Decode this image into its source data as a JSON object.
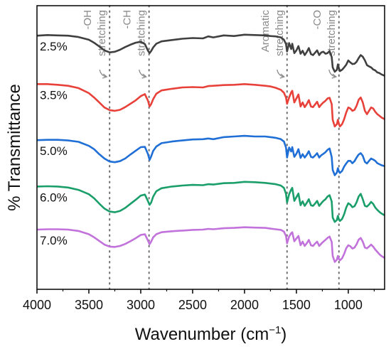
{
  "chart_data": {
    "type": "line",
    "title": "",
    "xlabel": "Wavenumber (cm",
    "xlabel_superscript": "−1",
    "xlabel_close": ")",
    "ylabel": "% Transmittance",
    "xlim": [
      4000,
      650
    ],
    "x_reversed": true,
    "y_ticks_shown": false,
    "grid": false,
    "x_ticks": [
      4000,
      3500,
      3000,
      2500,
      2000,
      1500,
      1000
    ],
    "x_tick_labels": [
      "4000",
      "3500",
      "3000",
      "2500",
      "2000",
      "1500",
      "1000"
    ],
    "reference_lines": [
      3300,
      2920,
      1590,
      1090
    ],
    "annotations": [
      {
        "lines": [
          "-OH",
          "stretching"
        ],
        "x": 3300
      },
      {
        "lines": [
          "-CH",
          "stretching"
        ],
        "x": 2920
      },
      {
        "lines": [
          "Aromatic",
          "stretching"
        ],
        "x": 1590
      },
      {
        "lines": [
          "-CO",
          "stretching"
        ],
        "x": 1090
      }
    ],
    "series": [
      {
        "name": "2.5%",
        "color": "#404040",
        "x": [
          4000,
          3900,
          3800,
          3700,
          3600,
          3500,
          3450,
          3400,
          3350,
          3300,
          3250,
          3200,
          3150,
          3100,
          3050,
          3000,
          2960,
          2930,
          2915,
          2900,
          2880,
          2850,
          2800,
          2700,
          2600,
          2500,
          2400,
          2350,
          2300,
          2200,
          2100,
          2000,
          1900,
          1800,
          1750,
          1700,
          1650,
          1620,
          1600,
          1590,
          1570,
          1550,
          1540,
          1520,
          1500,
          1480,
          1460,
          1440,
          1420,
          1400,
          1380,
          1360,
          1340,
          1320,
          1300,
          1280,
          1260,
          1240,
          1220,
          1200,
          1180,
          1160,
          1150,
          1130,
          1110,
          1100,
          1090,
          1080,
          1060,
          1040,
          1020,
          1000,
          980,
          960,
          940,
          920,
          900,
          880,
          860,
          840,
          820,
          800,
          780,
          760,
          740,
          720,
          700,
          680,
          650
        ],
        "y": [
          96,
          96.2,
          96.1,
          96,
          95.6,
          94.8,
          93.9,
          92.8,
          91.6,
          91,
          91.2,
          91.8,
          92.6,
          93.3,
          93.9,
          94.2,
          93.5,
          91.5,
          90.8,
          91.4,
          92.5,
          93.6,
          94.3,
          94.7,
          95.1,
          95.3,
          95.2,
          95.8,
          95.5,
          96.1,
          95.9,
          96.3,
          96.2,
          96.1,
          95.9,
          95.8,
          95.5,
          94.8,
          93.5,
          91.3,
          93.8,
          92,
          93.6,
          90.8,
          91.6,
          92.9,
          90.6,
          91.5,
          90.2,
          91.1,
          92.3,
          90.5,
          90.2,
          90.9,
          91.6,
          90.2,
          91,
          91.2,
          90.6,
          90.8,
          91.4,
          89.6,
          86.5,
          85.2,
          85.8,
          87.4,
          86.2,
          85.4,
          85.8,
          86.5,
          87.3,
          88.6,
          88,
          87.5,
          87.6,
          88.2,
          89.3,
          90.2,
          89.7,
          88.6,
          87.2,
          86.8,
          86.5,
          85.9,
          85.6,
          85,
          84.8,
          84.4,
          84
        ]
      },
      {
        "name": "3.5%",
        "color": "#e8413a",
        "x": [
          4000,
          3900,
          3800,
          3700,
          3600,
          3500,
          3450,
          3400,
          3350,
          3300,
          3250,
          3200,
          3150,
          3100,
          3050,
          3000,
          2960,
          2930,
          2915,
          2900,
          2880,
          2850,
          2800,
          2700,
          2600,
          2500,
          2400,
          2350,
          2300,
          2200,
          2100,
          2000,
          1900,
          1800,
          1750,
          1700,
          1650,
          1620,
          1600,
          1590,
          1570,
          1550,
          1540,
          1520,
          1500,
          1480,
          1460,
          1440,
          1420,
          1400,
          1380,
          1360,
          1340,
          1320,
          1300,
          1280,
          1260,
          1240,
          1220,
          1200,
          1180,
          1160,
          1150,
          1130,
          1110,
          1100,
          1090,
          1080,
          1060,
          1040,
          1020,
          1000,
          980,
          960,
          940,
          920,
          900,
          880,
          860,
          840,
          820,
          800,
          780,
          760,
          740,
          720,
          700,
          680,
          650
        ],
        "y": [
          81.5,
          81.5,
          81.3,
          81,
          80.3,
          78.8,
          77.5,
          76,
          74.5,
          73.7,
          73.5,
          73.8,
          74.6,
          75.6,
          76.6,
          77.9,
          78.5,
          76.5,
          74.8,
          75.5,
          77,
          78.6,
          79.6,
          80.1,
          80.5,
          80.6,
          80.5,
          80.9,
          81,
          81.2,
          81.3,
          81.5,
          81.3,
          81,
          80.8,
          80.4,
          79.8,
          78.9,
          77.5,
          75.6,
          77.5,
          79,
          79.5,
          76,
          77.2,
          78.4,
          74.8,
          76,
          74.6,
          75.5,
          76.7,
          74.8,
          74.6,
          75.4,
          76.2,
          74.6,
          75.4,
          76,
          76.5,
          77.2,
          77.4,
          75.5,
          70.8,
          68.8,
          69.5,
          70.8,
          69.5,
          68.8,
          69.5,
          71,
          73,
          74.5,
          74.2,
          73.5,
          73.8,
          75,
          76.8,
          77.5,
          76,
          73.5,
          72.5,
          73.5,
          74.5,
          74.2,
          73.2,
          72.5,
          72,
          71.5,
          71
        ]
      },
      {
        "name": "5.0%",
        "color": "#1f6fd6",
        "x": [
          4000,
          3900,
          3800,
          3700,
          3600,
          3500,
          3450,
          3400,
          3350,
          3300,
          3250,
          3200,
          3150,
          3100,
          3050,
          3000,
          2960,
          2930,
          2915,
          2900,
          2880,
          2850,
          2800,
          2700,
          2600,
          2500,
          2400,
          2350,
          2300,
          2200,
          2100,
          2000,
          1900,
          1800,
          1750,
          1700,
          1650,
          1620,
          1600,
          1590,
          1570,
          1550,
          1540,
          1520,
          1500,
          1480,
          1460,
          1440,
          1420,
          1400,
          1380,
          1360,
          1340,
          1320,
          1300,
          1280,
          1260,
          1240,
          1220,
          1200,
          1180,
          1160,
          1150,
          1130,
          1110,
          1100,
          1090,
          1080,
          1060,
          1040,
          1020,
          1000,
          980,
          960,
          940,
          920,
          900,
          880,
          860,
          840,
          820,
          800,
          780,
          760,
          740,
          720,
          700,
          680,
          650
        ],
        "y": [
          64.7,
          64.8,
          64.8,
          64.6,
          64.2,
          63,
          62,
          60.5,
          59.2,
          58.3,
          58.1,
          58.4,
          59.2,
          60.4,
          61.5,
          62.6,
          62.7,
          60.5,
          58.8,
          59.8,
          61.5,
          62.8,
          63.8,
          64.3,
          64.6,
          64.9,
          65,
          65.2,
          65,
          65.6,
          65.8,
          66,
          65.8,
          65.8,
          65.6,
          65.4,
          65,
          64.3,
          62.5,
          59.5,
          62.5,
          61.3,
          62.6,
          59.7,
          60.6,
          62,
          59.4,
          60.5,
          59.5,
          60.3,
          61.4,
          59.7,
          59.5,
          60.1,
          60.8,
          59.5,
          60.2,
          60.6,
          61.1,
          61.8,
          62.2,
          59.6,
          55.8,
          54.2,
          55,
          56.3,
          55.3,
          54.9,
          55.5,
          56.8,
          57.7,
          58.5,
          58.5,
          57.8,
          58.4,
          59.5,
          60.4,
          60.8,
          60,
          58.2,
          57.7,
          58.5,
          59.2,
          58.9,
          58.5,
          57.8,
          57.5,
          57.2,
          56.9
        ]
      },
      {
        "name": "6.0%",
        "color": "#1a9e6a",
        "x": [
          4000,
          3900,
          3800,
          3700,
          3600,
          3500,
          3450,
          3400,
          3350,
          3300,
          3250,
          3200,
          3150,
          3100,
          3050,
          3000,
          2960,
          2930,
          2915,
          2900,
          2880,
          2850,
          2800,
          2700,
          2600,
          2500,
          2400,
          2350,
          2300,
          2200,
          2100,
          2000,
          1900,
          1800,
          1750,
          1700,
          1650,
          1620,
          1600,
          1590,
          1570,
          1550,
          1540,
          1520,
          1500,
          1480,
          1460,
          1440,
          1420,
          1400,
          1380,
          1360,
          1340,
          1320,
          1300,
          1280,
          1260,
          1240,
          1220,
          1200,
          1180,
          1160,
          1150,
          1130,
          1110,
          1100,
          1090,
          1080,
          1060,
          1040,
          1020,
          1000,
          980,
          960,
          940,
          920,
          900,
          880,
          860,
          840,
          820,
          800,
          780,
          760,
          740,
          720,
          700,
          680,
          650
        ],
        "y": [
          50.8,
          50.9,
          50.8,
          50.5,
          49.8,
          48.5,
          47.3,
          45.7,
          44.2,
          43.3,
          43.1,
          43.5,
          44.4,
          45.6,
          46.8,
          48.1,
          48.4,
          46.4,
          45.3,
          46,
          47.8,
          49.4,
          50.3,
          50.8,
          51.1,
          51.3,
          51.2,
          51.5,
          51.4,
          51.8,
          51.9,
          52.2,
          52.1,
          51.9,
          51.7,
          51.5,
          51.1,
          50.4,
          48.6,
          46,
          48.5,
          49.9,
          50.4,
          46.5,
          47.6,
          48.7,
          45.2,
          46.4,
          45,
          45.9,
          47,
          45.2,
          45,
          45.7,
          46.5,
          45,
          45.8,
          46.5,
          47,
          47.8,
          48.2,
          46.3,
          41.5,
          40.2,
          40.8,
          42,
          40.9,
          40.5,
          41.1,
          42.5,
          44.5,
          45.8,
          45.4,
          44.6,
          44.9,
          46.1,
          47.8,
          48.6,
          47,
          45,
          44.8,
          45.4,
          46.2,
          45.6,
          44.5,
          43.8,
          43.2,
          42.7,
          42.2
        ]
      },
      {
        "name": "7.0%",
        "color": "#c272db",
        "x": [
          4000,
          3900,
          3800,
          3700,
          3600,
          3500,
          3450,
          3400,
          3350,
          3300,
          3250,
          3200,
          3150,
          3100,
          3050,
          3000,
          2960,
          2930,
          2915,
          2900,
          2880,
          2850,
          2800,
          2700,
          2600,
          2500,
          2400,
          2350,
          2300,
          2200,
          2100,
          2000,
          1900,
          1800,
          1750,
          1700,
          1650,
          1620,
          1600,
          1590,
          1570,
          1550,
          1540,
          1520,
          1500,
          1480,
          1460,
          1440,
          1420,
          1400,
          1380,
          1360,
          1340,
          1320,
          1300,
          1280,
          1260,
          1240,
          1220,
          1200,
          1180,
          1160,
          1150,
          1130,
          1110,
          1100,
          1090,
          1080,
          1060,
          1040,
          1020,
          1000,
          980,
          960,
          940,
          920,
          900,
          880,
          860,
          840,
          820,
          800,
          780,
          760,
          740,
          720,
          700,
          680,
          650
        ],
        "y": [
          37.9,
          38,
          38,
          37.9,
          37.5,
          36.5,
          35.6,
          34.5,
          33.4,
          32.8,
          32.7,
          33,
          33.6,
          34.4,
          35.3,
          36.3,
          36.5,
          34.6,
          33.5,
          34.3,
          35.6,
          36.5,
          37.1,
          37.4,
          37.6,
          37.8,
          37.9,
          38.1,
          38,
          38.3,
          38.4,
          38.6,
          38.5,
          38.4,
          38.2,
          38,
          37.8,
          37.3,
          36,
          33.8,
          35.8,
          36.8,
          37.1,
          34.4,
          35.2,
          36,
          33.2,
          34.3,
          33,
          33.8,
          34.8,
          33.2,
          33,
          33.7,
          34.3,
          33,
          33.7,
          34.3,
          34.8,
          35.4,
          35.8,
          34.2,
          30,
          28.2,
          28.9,
          30,
          29.1,
          28.7,
          29.3,
          30.6,
          32.3,
          33.2,
          32.9,
          32.2,
          32.5,
          33.5,
          34.9,
          35.4,
          34.3,
          32.5,
          32.3,
          32.8,
          33.4,
          32.8,
          31.9,
          31.2,
          30.5,
          30,
          29.4
        ]
      }
    ]
  }
}
